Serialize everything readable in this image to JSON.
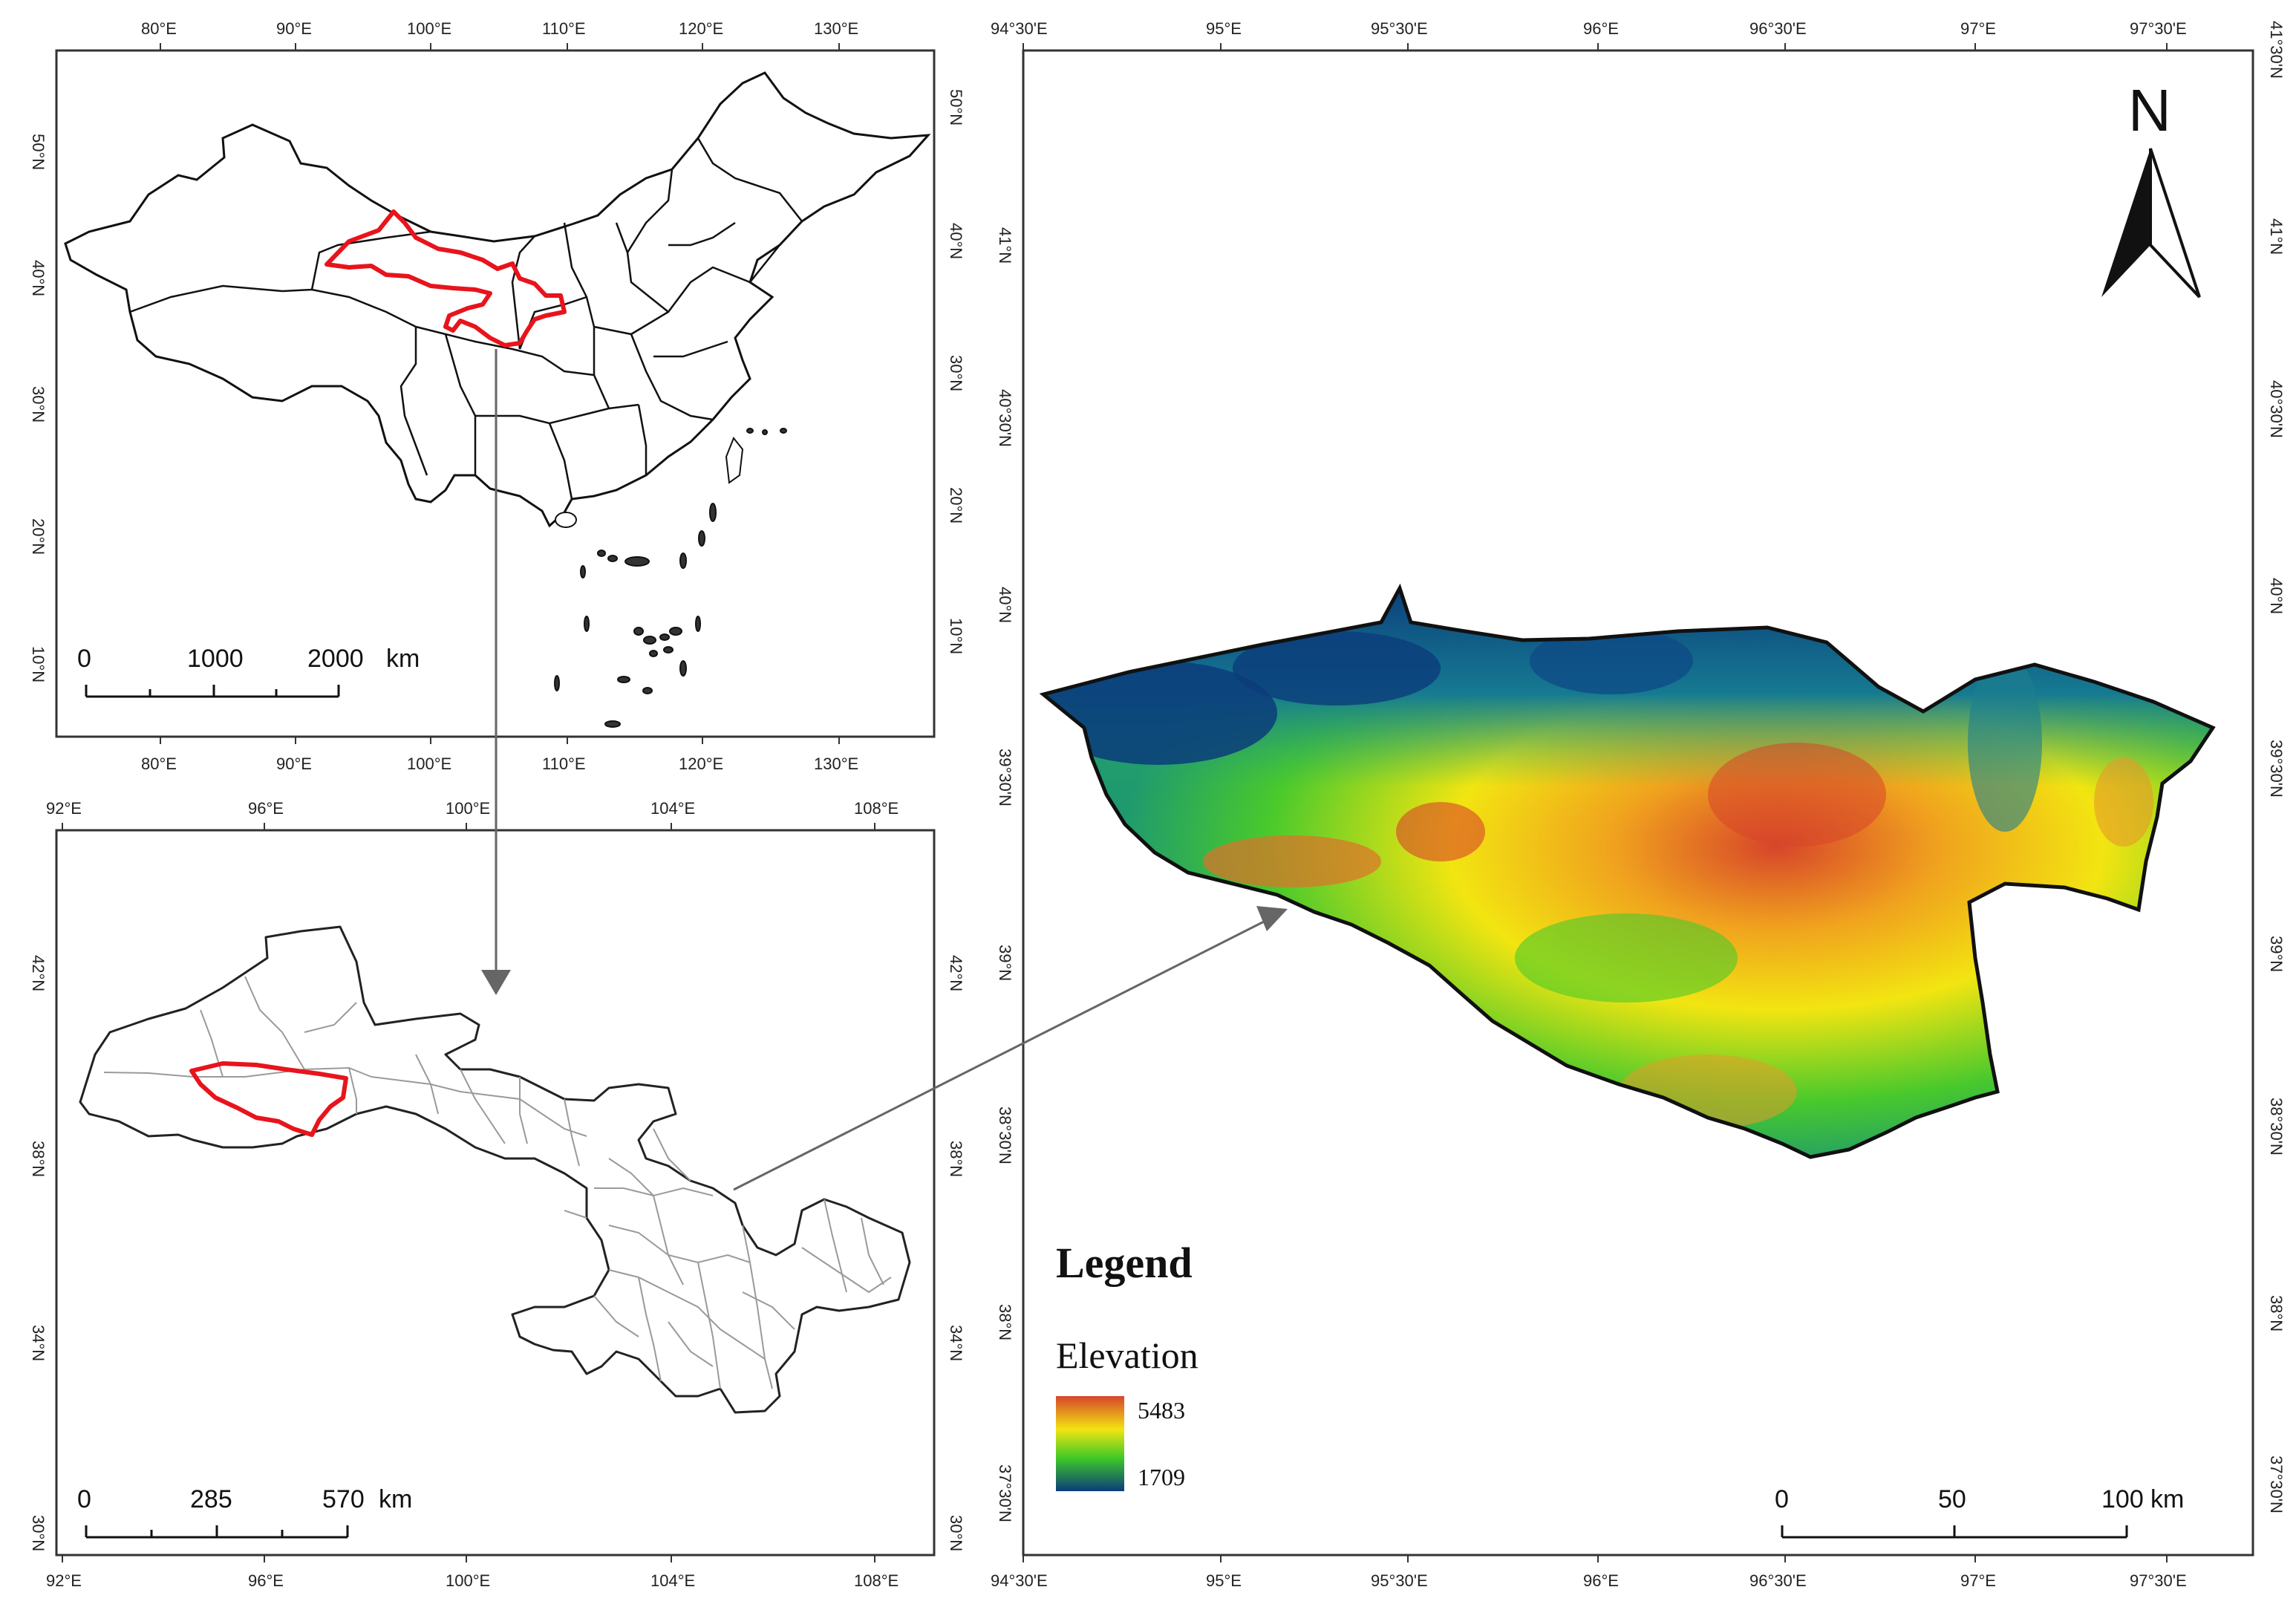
{
  "china_panel": {
    "top_ticks": [
      "80°E",
      "90°E",
      "100°E",
      "110°E",
      "120°E",
      "130°E"
    ],
    "bottom_ticks": [
      "80°E",
      "90°E",
      "100°E",
      "110°E",
      "120°E",
      "130°E"
    ],
    "left_ticks": [
      "50°N",
      "40°N",
      "30°N",
      "20°N",
      "10°N"
    ],
    "right_ticks": [
      "50°N",
      "40°N",
      "30°N",
      "20°N",
      "10°N"
    ],
    "scale": [
      "0",
      "1000",
      "2000",
      "km"
    ]
  },
  "province_panel": {
    "top_ticks": [
      "92°E",
      "96°E",
      "100°E",
      "104°E",
      "108°E"
    ],
    "bottom_ticks": [
      "92°E",
      "96°E",
      "100°E",
      "104°E",
      "108°E"
    ],
    "left_ticks": [
      "42°N",
      "38°N",
      "34°N",
      "30°N"
    ],
    "right_ticks": [
      "42°N",
      "38°N",
      "34°N",
      "30°N"
    ],
    "scale": [
      "0",
      "285",
      "570",
      "km"
    ]
  },
  "dem_panel": {
    "top_ticks": [
      "94°30'E",
      "95°E",
      "95°30'E",
      "96°E",
      "96°30'E",
      "97°E",
      "97°30'E"
    ],
    "bottom_ticks": [
      "94°30'E",
      "95°E",
      "95°30'E",
      "96°E",
      "96°30'E",
      "97°E",
      "97°30'E"
    ],
    "left_ticks": [
      "41°N",
      "40°30'N",
      "40°N",
      "39°30'N",
      "39°N",
      "38°30'N",
      "38°N",
      "37°30'N"
    ],
    "right_ticks": [
      "41°30'N",
      "41°N",
      "40°30'N",
      "40°N",
      "39°30'N",
      "39°N",
      "38°30'N",
      "38°N",
      "37°30'N"
    ],
    "north_label": "N",
    "legend_title": "Legend",
    "legend_subtitle": "Elevation",
    "legend_high": "5483",
    "legend_low": "1709",
    "scale": [
      "0",
      "50",
      "100",
      "km"
    ]
  },
  "colors": {
    "highlight": "#e8141c",
    "elev_high": "#d7452a",
    "elev_mid_high": "#f2e511",
    "elev_mid": "#3fc928",
    "elev_low": "#0b3c7a"
  }
}
